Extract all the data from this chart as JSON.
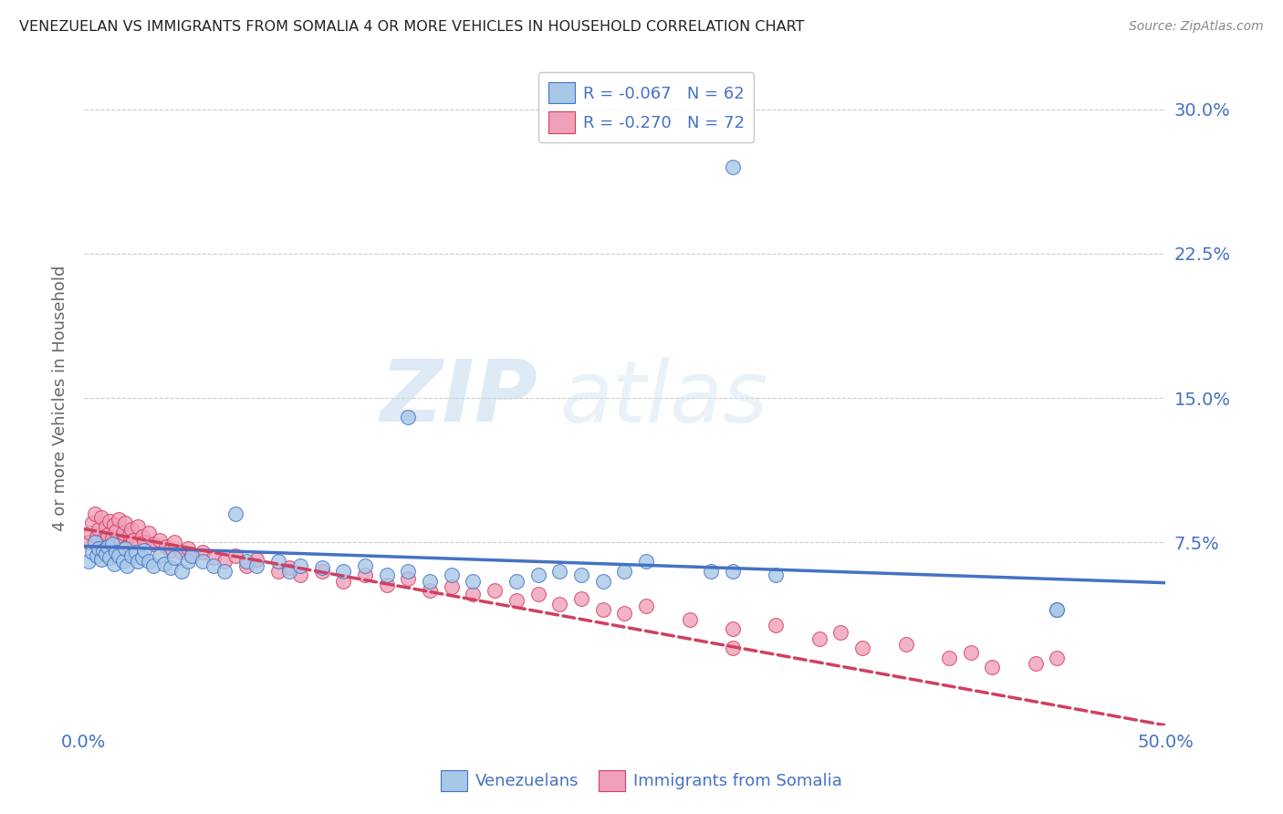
{
  "title": "VENEZUELAN VS IMMIGRANTS FROM SOMALIA 4 OR MORE VEHICLES IN HOUSEHOLD CORRELATION CHART",
  "source": "Source: ZipAtlas.com",
  "ylabel": "4 or more Vehicles in Household",
  "legend_label1": "Venezuelans",
  "legend_label2": "Immigrants from Somalia",
  "legend_r1": "-0.067",
  "legend_n1": "N = 62",
  "legend_r2": "-0.270",
  "legend_n2": "N = 72",
  "xlim": [
    0.0,
    0.5
  ],
  "ylim": [
    -0.02,
    0.32
  ],
  "color_blue": "#a8c8e8",
  "color_pink": "#f0a0b8",
  "line_color_blue": "#4472c4",
  "line_color_pink": "#d04060",
  "watermark_zip": "ZIP",
  "watermark_atlas": "atlas",
  "background_color": "#ffffff",
  "ven_x": [
    0.002,
    0.004,
    0.005,
    0.006,
    0.007,
    0.008,
    0.009,
    0.01,
    0.011,
    0.012,
    0.013,
    0.014,
    0.015,
    0.016,
    0.018,
    0.019,
    0.02,
    0.022,
    0.024,
    0.025,
    0.027,
    0.028,
    0.03,
    0.032,
    0.035,
    0.037,
    0.04,
    0.042,
    0.045,
    0.048,
    0.05,
    0.055,
    0.06,
    0.065,
    0.07,
    0.075,
    0.08,
    0.09,
    0.095,
    0.1,
    0.11,
    0.12,
    0.13,
    0.14,
    0.15,
    0.16,
    0.17,
    0.18,
    0.2,
    0.21,
    0.22,
    0.23,
    0.24,
    0.25,
    0.26,
    0.29,
    0.3,
    0.32,
    0.45,
    0.45,
    0.15,
    0.3
  ],
  "ven_y": [
    0.065,
    0.07,
    0.075,
    0.068,
    0.072,
    0.066,
    0.071,
    0.069,
    0.073,
    0.067,
    0.074,
    0.064,
    0.07,
    0.068,
    0.065,
    0.072,
    0.063,
    0.068,
    0.07,
    0.065,
    0.067,
    0.071,
    0.065,
    0.063,
    0.068,
    0.064,
    0.062,
    0.067,
    0.06,
    0.065,
    0.068,
    0.065,
    0.063,
    0.06,
    0.09,
    0.065,
    0.063,
    0.065,
    0.06,
    0.063,
    0.062,
    0.06,
    0.063,
    0.058,
    0.06,
    0.055,
    0.058,
    0.055,
    0.055,
    0.058,
    0.06,
    0.058,
    0.055,
    0.06,
    0.065,
    0.06,
    0.06,
    0.058,
    0.04,
    0.04,
    0.14,
    0.27
  ],
  "som_x": [
    0.002,
    0.003,
    0.004,
    0.005,
    0.006,
    0.007,
    0.008,
    0.009,
    0.01,
    0.011,
    0.012,
    0.013,
    0.014,
    0.015,
    0.016,
    0.017,
    0.018,
    0.019,
    0.02,
    0.021,
    0.022,
    0.023,
    0.025,
    0.027,
    0.028,
    0.03,
    0.032,
    0.035,
    0.038,
    0.04,
    0.042,
    0.045,
    0.048,
    0.05,
    0.055,
    0.06,
    0.065,
    0.07,
    0.075,
    0.08,
    0.09,
    0.095,
    0.1,
    0.11,
    0.12,
    0.13,
    0.14,
    0.15,
    0.16,
    0.17,
    0.18,
    0.19,
    0.2,
    0.21,
    0.22,
    0.23,
    0.24,
    0.25,
    0.26,
    0.28,
    0.3,
    0.32,
    0.34,
    0.35,
    0.36,
    0.38,
    0.4,
    0.41,
    0.42,
    0.44,
    0.3,
    0.45
  ],
  "som_y": [
    0.075,
    0.08,
    0.085,
    0.09,
    0.078,
    0.082,
    0.088,
    0.076,
    0.083,
    0.079,
    0.086,
    0.077,
    0.084,
    0.081,
    0.087,
    0.074,
    0.08,
    0.085,
    0.073,
    0.079,
    0.082,
    0.076,
    0.083,
    0.078,
    0.075,
    0.08,
    0.074,
    0.076,
    0.073,
    0.071,
    0.075,
    0.07,
    0.072,
    0.068,
    0.07,
    0.067,
    0.065,
    0.068,
    0.063,
    0.066,
    0.06,
    0.062,
    0.058,
    0.06,
    0.055,
    0.058,
    0.053,
    0.056,
    0.05,
    0.052,
    0.048,
    0.05,
    0.045,
    0.048,
    0.043,
    0.046,
    0.04,
    0.038,
    0.042,
    0.035,
    0.03,
    0.032,
    0.025,
    0.028,
    0.02,
    0.022,
    0.015,
    0.018,
    0.01,
    0.012,
    0.02,
    0.015
  ],
  "ven_line_x": [
    0.0,
    0.5
  ],
  "ven_line_y": [
    0.073,
    0.054
  ],
  "som_line_x": [
    0.0,
    0.5
  ],
  "som_line_y": [
    0.082,
    -0.02
  ]
}
